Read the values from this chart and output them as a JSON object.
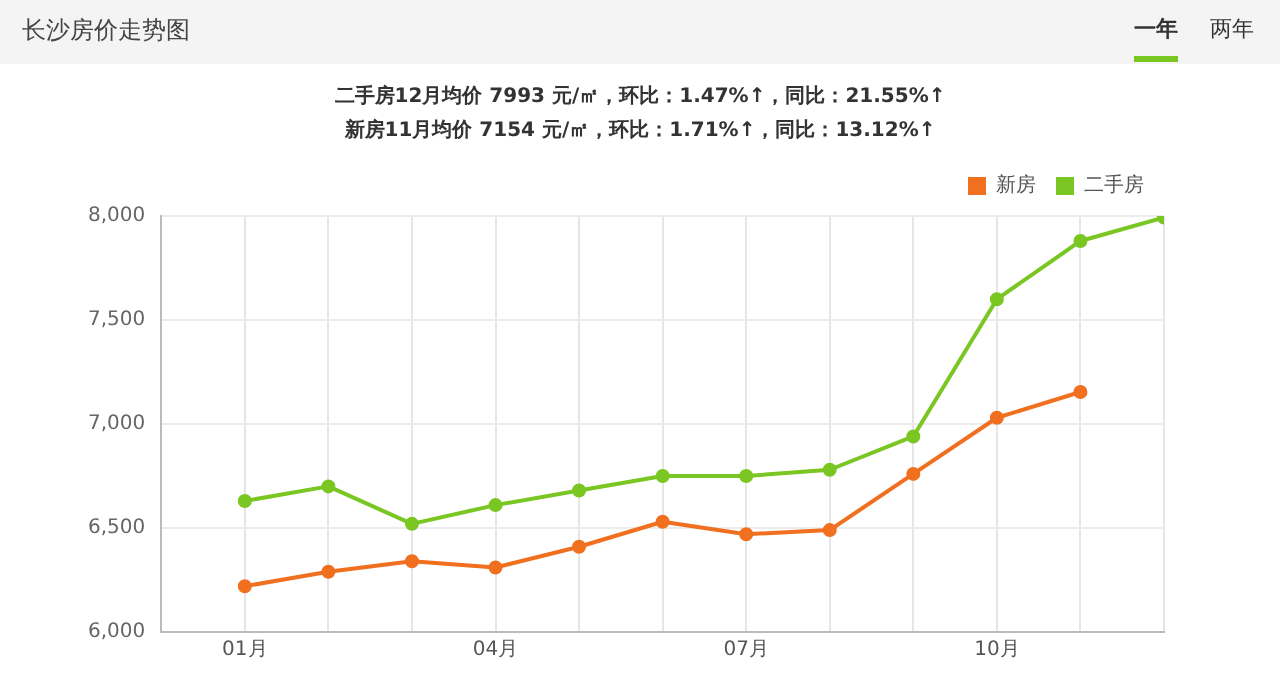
{
  "chart_data": {
    "type": "line",
    "title": "长沙房价走势图",
    "subtitle": "二手房12月均价 7993 元/㎡，环比：1.47%↑，同比：21.55%↑\n新房11月均价 7154 元/㎡，环比：1.71%↑，同比：13.12%↑",
    "annotations": [
      "一年",
      "两年"
    ],
    "x": [
      1,
      2,
      3,
      4,
      5,
      6,
      7,
      8,
      9,
      10,
      11,
      12
    ],
    "xlim": [
      0,
      12
    ],
    "xticks": [
      {
        "value": 1,
        "label": "01月"
      },
      {
        "value": 2,
        "label": null
      },
      {
        "value": 3,
        "label": null
      },
      {
        "value": 4,
        "label": "04月"
      },
      {
        "value": 5,
        "label": null
      },
      {
        "value": 6,
        "label": null
      },
      {
        "value": 7,
        "label": "07月"
      },
      {
        "value": 8,
        "label": null
      },
      {
        "value": 9,
        "label": null
      },
      {
        "value": 10,
        "label": "10月"
      },
      {
        "value": 11,
        "label": null
      },
      {
        "value": 12,
        "label": null
      }
    ],
    "ylim": [
      6000,
      8000
    ],
    "yticks": [
      {
        "value": 6000,
        "label": "6,000"
      },
      {
        "value": 6500,
        "label": "6,500"
      },
      {
        "value": 7000,
        "label": "7,000"
      },
      {
        "value": 7500,
        "label": "7,500"
      },
      {
        "value": 8000,
        "label": "8,000"
      }
    ],
    "series": [
      {
        "name": "新房",
        "color": "#f07020",
        "values": [
          6220,
          6290,
          6340,
          6310,
          6410,
          6530,
          6470,
          6490,
          6760,
          7030,
          7154,
          null
        ]
      },
      {
        "name": "二手房",
        "color": "#7ac623",
        "values": [
          6630,
          6700,
          6520,
          6610,
          6680,
          6750,
          6750,
          6780,
          6940,
          7600,
          7880,
          7993
        ]
      }
    ],
    "grid": true,
    "legend": "top right",
    "marker": "circle",
    "line_style": "solid"
  }
}
